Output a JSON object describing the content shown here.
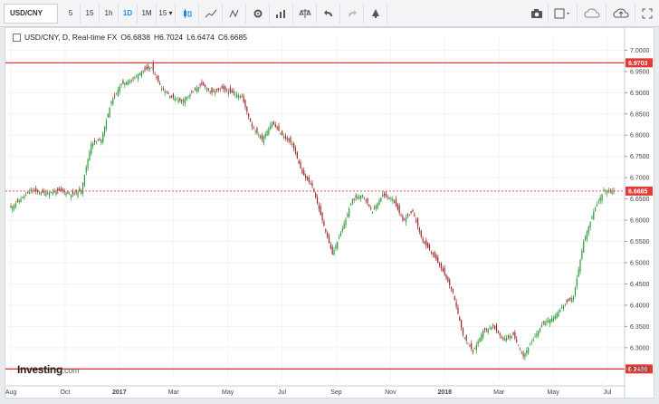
{
  "toolbar": {
    "symbol": "USD/CNY",
    "intervals": [
      "5",
      "15",
      "1h",
      "1D",
      "1M",
      "15"
    ],
    "active_interval": "1D"
  },
  "legend": {
    "title": "USD/CNY, D, Real-time FX",
    "open": "O6.6838",
    "high": "H6.7024",
    "low": "L6.6474",
    "close": "C6.6685"
  },
  "logo": {
    "name": "Investing",
    "suffix": ".com"
  },
  "colors": {
    "up": "#2e9b3a",
    "down": "#9c2a2a",
    "hline": "#e53935",
    "last": "#e53935"
  },
  "chart_data": {
    "type": "candlestick",
    "ylim": [
      6.225,
      7.035
    ],
    "y_ticks": [
      "7.0000",
      "6.9500",
      "6.9000",
      "6.8500",
      "6.8000",
      "6.7500",
      "6.7000",
      "6.6500",
      "6.6000",
      "6.5500",
      "6.5000",
      "6.4500",
      "6.4000",
      "6.3500",
      "6.3000",
      "6.2500"
    ],
    "x_labels": [
      {
        "text": "Aug",
        "bold": false
      },
      {
        "text": "Oct",
        "bold": false
      },
      {
        "text": "2017",
        "bold": true
      },
      {
        "text": "Mar",
        "bold": false
      },
      {
        "text": "May",
        "bold": false
      },
      {
        "text": "Jul",
        "bold": false
      },
      {
        "text": "Sep",
        "bold": false
      },
      {
        "text": "Nov",
        "bold": false
      },
      {
        "text": "2018",
        "bold": true
      },
      {
        "text": "Mar",
        "bold": false
      },
      {
        "text": "May",
        "bold": false
      },
      {
        "text": "Jul",
        "bold": false
      }
    ],
    "hlines": [
      {
        "value": 6.9703,
        "label": "6.9703"
      },
      {
        "value": 6.2499,
        "label": "6.2499"
      }
    ],
    "last_price": {
      "value": 6.6685,
      "label": "6.6685"
    },
    "series": [
      6.63,
      6.65,
      6.67,
      6.665,
      6.665,
      6.67,
      6.66,
      6.67,
      6.78,
      6.79,
      6.88,
      6.92,
      6.93,
      6.95,
      6.96,
      6.91,
      6.89,
      6.88,
      6.9,
      6.92,
      6.9,
      6.91,
      6.9,
      6.89,
      6.82,
      6.79,
      6.83,
      6.8,
      6.78,
      6.71,
      6.68,
      6.6,
      6.52,
      6.58,
      6.65,
      6.66,
      6.62,
      6.66,
      6.65,
      6.6,
      6.62,
      6.55,
      6.52,
      6.48,
      6.43,
      6.33,
      6.29,
      6.34,
      6.35,
      6.32,
      6.33,
      6.28,
      6.32,
      6.36,
      6.37,
      6.4,
      6.42,
      6.55,
      6.62,
      6.67,
      6.6685
    ]
  }
}
